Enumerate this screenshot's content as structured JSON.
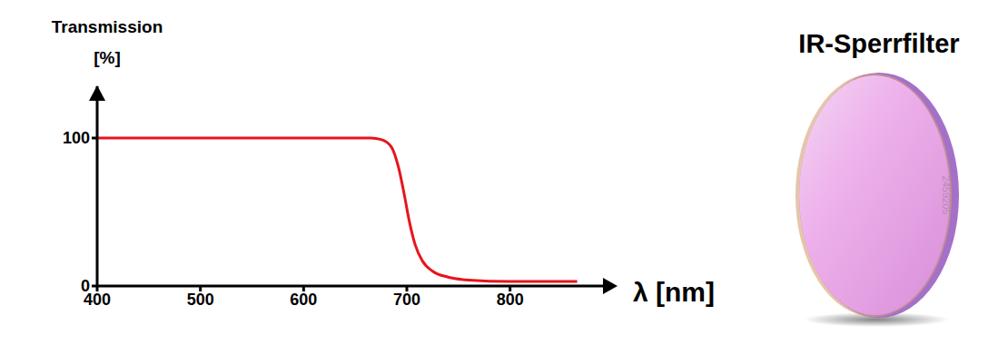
{
  "chart_data": {
    "type": "line",
    "title": "IR-Sperrfilter",
    "ylabel": "Transmission [%]",
    "xlabel": "λ [nm]",
    "x": [
      400,
      600,
      665,
      675,
      685,
      692,
      698,
      702,
      708,
      715,
      725,
      740,
      760,
      800,
      865
    ],
    "values": [
      100,
      100,
      100,
      99,
      94,
      80,
      60,
      45,
      28,
      17,
      10,
      6,
      4,
      3,
      3
    ],
    "color": "#e8141c",
    "xlim": [
      400,
      890
    ],
    "ylim": [
      0,
      135
    ],
    "xticks": [
      400,
      500,
      600,
      700,
      800
    ],
    "yticks": [
      0,
      100
    ],
    "grid": false,
    "image_text": "2459205"
  }
}
